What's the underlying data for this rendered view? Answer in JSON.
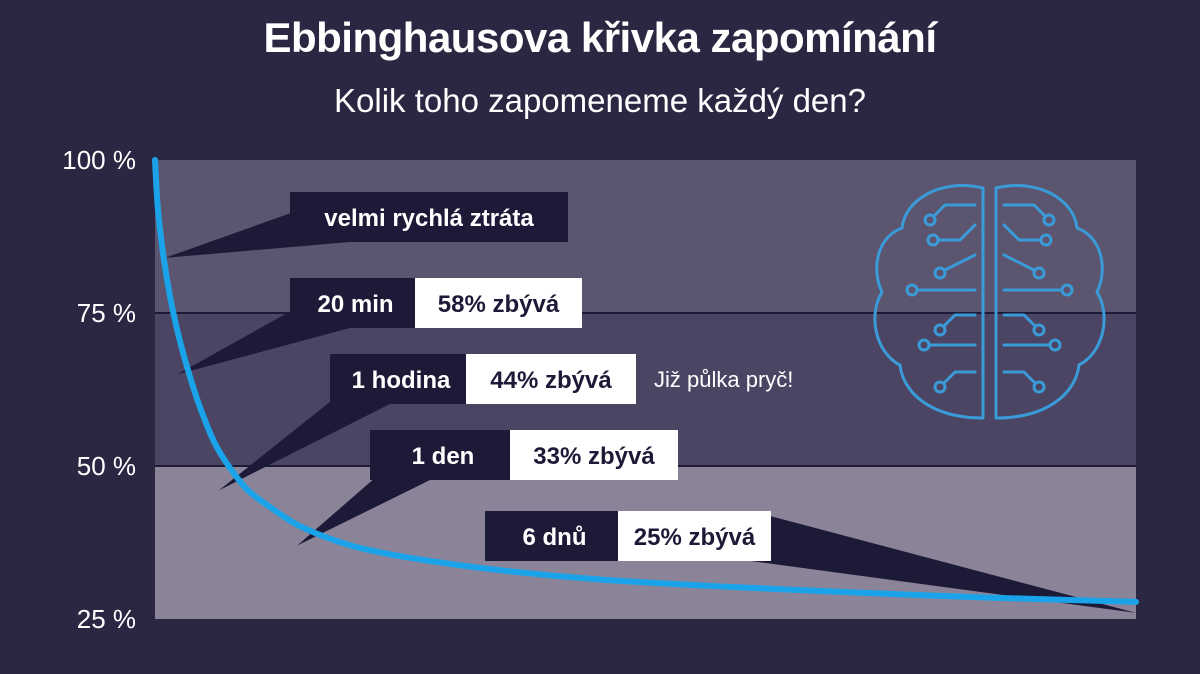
{
  "title": "Ebbinghausova křivka zapomínání",
  "subtitle": "Kolik toho zapomeneme každý den?",
  "colors": {
    "background": "#2b2742",
    "band_top": "#5b5570",
    "band_mid": "#4b4563",
    "band_bottom": "#8b8499",
    "curve": "#1aa3e8",
    "callout_dark": "#1d1a38",
    "callout_light": "#ffffff",
    "brain": "#3a9bd8"
  },
  "icon": "brain-circuit-icon",
  "chart_data": {
    "type": "line",
    "title": "Ebbinghausova křivka zapomínání",
    "subtitle": "Kolik toho zapomeneme každý den?",
    "ylim": [
      25,
      100
    ],
    "ytick_labels": [
      "100 %",
      "75 %",
      "50 %",
      "25 %"
    ],
    "ytick_values": [
      100,
      75,
      50,
      25
    ],
    "grid": true,
    "series": [
      {
        "values": [
          [
            0,
            100
          ],
          [
            0.3,
            92
          ],
          [
            0.8,
            85
          ],
          [
            1.5,
            78
          ],
          [
            2.3,
            72
          ],
          [
            3.3,
            66
          ],
          [
            4.5,
            60
          ],
          [
            6,
            54
          ],
          [
            7.5,
            50
          ],
          [
            9.5,
            46
          ],
          [
            12,
            43
          ],
          [
            15,
            40
          ],
          [
            20,
            37
          ],
          [
            26,
            35
          ],
          [
            35,
            33
          ],
          [
            45,
            31.5
          ],
          [
            58,
            30.3
          ],
          [
            72,
            29.3
          ],
          [
            85,
            28.5
          ],
          [
            100,
            27.8
          ]
        ]
      }
    ],
    "annotations": [
      {
        "id": "fast",
        "label": "velmi rychlá ztráta",
        "value": "",
        "note": "",
        "point": [
          1,
          84
        ]
      },
      {
        "id": "m20",
        "label": "20 min",
        "value": "58% zbývá",
        "note": "",
        "point": [
          2.3,
          65
        ]
      },
      {
        "id": "h1",
        "label": "1 hodina",
        "value": "44% zbývá",
        "note": "Již půlka pryč!",
        "point": [
          6.5,
          46
        ]
      },
      {
        "id": "d1",
        "label": "1 den",
        "value": "33% zbývá",
        "note": "",
        "point": [
          14.5,
          37
        ]
      },
      {
        "id": "d6",
        "label": "6 dnů",
        "value": "25% zbývá",
        "note": "",
        "point": [
          100,
          26
        ]
      }
    ]
  }
}
